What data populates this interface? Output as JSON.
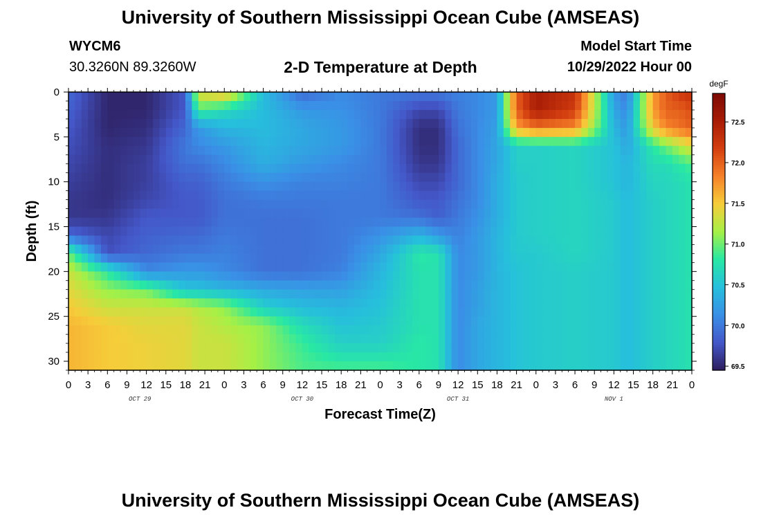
{
  "header": {
    "title": "University of Southern Mississippi Ocean Cube (AMSEAS)",
    "station_id": "WYCM6",
    "station_coords": "30.3260N  89.3260W",
    "plot_title": "2-D Temperature at Depth",
    "model_start_label": "Model Start Time",
    "model_start_value": "10/29/2022 Hour 00"
  },
  "footer": {
    "title": "University of Southern Mississippi Ocean Cube (AMSEAS)"
  },
  "chart_data": {
    "type": "heatmap",
    "title": "2-D Temperature at Depth",
    "xlabel": "Forecast Time(Z)",
    "ylabel": "Depth (ft)",
    "x_range_hours": [
      0,
      96
    ],
    "y_range_ft": [
      0,
      31
    ],
    "y_inverted": true,
    "x_tick_labels": [
      "0",
      "3",
      "6",
      "9",
      "12",
      "15",
      "18",
      "21",
      "0",
      "3",
      "6",
      "9",
      "12",
      "15",
      "18",
      "21",
      "0",
      "3",
      "6",
      "9",
      "12",
      "15",
      "18",
      "21",
      "0",
      "3",
      "6",
      "9",
      "12",
      "15",
      "18",
      "21",
      "0"
    ],
    "day_labels": [
      {
        "text": "OCT 29",
        "hour": 11
      },
      {
        "text": "OCT 30",
        "hour": 36
      },
      {
        "text": "OCT 31",
        "hour": 60
      },
      {
        "text": "NOV 1",
        "hour": 84
      }
    ],
    "y_ticks": [
      0,
      5,
      10,
      15,
      20,
      25,
      30
    ],
    "colorbar": {
      "unit": "degF",
      "min": 69.45,
      "max": 72.85,
      "ticks": [
        69.5,
        70.0,
        70.5,
        71.0,
        71.5,
        72.0,
        72.5
      ],
      "tick_labels": [
        "69.5",
        "70.0",
        "70.5",
        "71.0",
        "71.5",
        "72.0",
        "72.5"
      ],
      "colors": [
        "#2d1e5e",
        "#4457c9",
        "#3a8fe6",
        "#26bfdc",
        "#28e8a4",
        "#a6f046",
        "#f6cd3a",
        "#f6822a",
        "#d43f10",
        "#a81c06",
        "#7d0b05"
      ]
    },
    "grid": false,
    "approx_profiles_degF": {
      "depths_ft": [
        0,
        2,
        4,
        6,
        8,
        10,
        12,
        14,
        16,
        18,
        20,
        22,
        24,
        26,
        28,
        30,
        31
      ],
      "times_hr": [
        0,
        6,
        12,
        18,
        20,
        24,
        30,
        36,
        42,
        48,
        54,
        57,
        60,
        63,
        66,
        69,
        72,
        78,
        84,
        86,
        90,
        92,
        94,
        96
      ],
      "columns": [
        [
          69.9,
          69.85,
          69.8,
          69.75,
          69.7,
          69.65,
          69.6,
          69.6,
          69.9,
          71.0,
          71.3,
          71.4,
          71.5,
          71.6,
          71.6,
          71.6,
          71.6
        ],
        [
          69.5,
          69.5,
          69.5,
          69.55,
          69.55,
          69.55,
          69.55,
          69.6,
          69.7,
          69.75,
          70.8,
          71.1,
          71.3,
          71.5,
          71.5,
          71.5,
          71.5
        ],
        [
          69.5,
          69.5,
          69.55,
          69.6,
          69.65,
          69.65,
          69.7,
          69.8,
          69.85,
          69.9,
          70.1,
          71.0,
          71.3,
          71.4,
          71.45,
          71.45,
          71.45
        ],
        [
          69.8,
          69.8,
          69.9,
          70.0,
          69.95,
          69.85,
          69.8,
          69.8,
          69.9,
          70.0,
          70.2,
          70.5,
          71.3,
          71.4,
          71.4,
          71.4,
          71.4
        ],
        [
          71.4,
          70.9,
          70.2,
          70.1,
          69.95,
          69.85,
          69.8,
          69.8,
          69.9,
          70.0,
          70.2,
          70.5,
          71.2,
          71.3,
          71.3,
          71.3,
          71.3
        ],
        [
          71.6,
          70.7,
          70.4,
          70.2,
          70.1,
          70.0,
          69.95,
          69.95,
          70.0,
          70.05,
          70.1,
          70.4,
          71.1,
          71.2,
          71.3,
          71.3,
          71.3
        ],
        [
          70.45,
          70.45,
          70.45,
          70.4,
          70.35,
          70.15,
          70.0,
          69.95,
          69.95,
          69.95,
          69.95,
          70.3,
          70.6,
          71.1,
          71.1,
          71.1,
          71.1
        ],
        [
          69.9,
          70.2,
          70.3,
          70.3,
          70.2,
          70.05,
          70.0,
          69.95,
          69.95,
          69.95,
          69.95,
          70.25,
          70.45,
          70.7,
          70.85,
          70.9,
          70.9
        ],
        [
          70.1,
          70.15,
          70.2,
          70.2,
          70.1,
          70.05,
          70.0,
          70.0,
          70.0,
          70.0,
          70.05,
          70.25,
          70.4,
          70.5,
          70.6,
          70.8,
          70.9
        ],
        [
          70.0,
          70.0,
          70.0,
          70.0,
          70.0,
          70.0,
          70.0,
          70.0,
          70.15,
          70.3,
          70.4,
          70.45,
          70.5,
          70.55,
          70.6,
          70.8,
          70.9
        ],
        [
          70.0,
          69.7,
          69.55,
          69.55,
          69.6,
          69.7,
          69.8,
          69.95,
          70.4,
          70.8,
          70.75,
          70.75,
          70.75,
          70.75,
          70.8,
          70.8,
          70.8
        ],
        [
          70.0,
          69.7,
          69.55,
          69.55,
          69.6,
          69.7,
          69.8,
          69.85,
          70.2,
          70.75,
          70.75,
          70.75,
          70.75,
          70.75,
          70.75,
          70.75,
          70.75
        ],
        [
          70.05,
          70.0,
          69.95,
          69.9,
          69.9,
          69.9,
          69.95,
          70.0,
          70.05,
          70.1,
          70.1,
          70.1,
          70.1,
          70.1,
          70.1,
          70.1,
          70.1
        ],
        [
          70.1,
          70.1,
          70.1,
          70.1,
          70.1,
          70.1,
          70.1,
          70.15,
          70.2,
          70.2,
          70.2,
          70.25,
          70.25,
          70.3,
          70.3,
          70.3,
          70.3
        ],
        [
          70.2,
          70.2,
          70.25,
          70.3,
          70.3,
          70.35,
          70.35,
          70.35,
          70.4,
          70.4,
          70.4,
          70.4,
          70.4,
          70.4,
          70.4,
          70.4,
          70.4
        ],
        [
          72.0,
          72.0,
          71.7,
          70.6,
          70.6,
          70.55,
          70.55,
          70.55,
          70.55,
          70.55,
          70.5,
          70.5,
          70.5,
          70.5,
          70.5,
          70.5,
          70.5
        ],
        [
          72.5,
          72.5,
          71.9,
          70.6,
          70.6,
          70.6,
          70.6,
          70.6,
          70.6,
          70.55,
          70.55,
          70.55,
          70.55,
          70.55,
          70.55,
          70.55,
          70.55
        ],
        [
          72.3,
          72.2,
          71.8,
          70.65,
          70.65,
          70.65,
          70.65,
          70.65,
          70.65,
          70.65,
          70.6,
          70.6,
          70.6,
          70.6,
          70.6,
          70.6,
          70.6
        ],
        [
          70.2,
          70.3,
          70.4,
          70.5,
          70.5,
          70.5,
          70.55,
          70.55,
          70.55,
          70.55,
          70.55,
          70.55,
          70.55,
          70.55,
          70.55,
          70.55,
          70.55
        ],
        [
          70.0,
          70.1,
          70.2,
          70.3,
          70.4,
          70.4,
          70.45,
          70.45,
          70.45,
          70.45,
          70.45,
          70.45,
          70.45,
          70.45,
          70.45,
          70.45,
          70.45
        ],
        [
          71.7,
          71.7,
          71.5,
          70.8,
          70.7,
          70.65,
          70.6,
          70.6,
          70.6,
          70.6,
          70.6,
          70.6,
          70.6,
          70.6,
          70.6,
          70.6,
          70.6
        ],
        [
          72.0,
          72.0,
          71.8,
          71.0,
          70.7,
          70.65,
          70.65,
          70.65,
          70.65,
          70.65,
          70.65,
          70.65,
          70.65,
          70.65,
          70.65,
          70.65,
          70.65
        ],
        [
          72.2,
          72.0,
          71.9,
          71.2,
          70.8,
          70.7,
          70.7,
          70.7,
          70.7,
          70.7,
          70.7,
          70.7,
          70.7,
          70.7,
          70.7,
          70.7,
          70.7
        ],
        [
          72.3,
          72.1,
          72.0,
          71.4,
          70.9,
          70.75,
          70.75,
          70.75,
          70.75,
          70.75,
          70.75,
          70.75,
          70.75,
          70.75,
          70.75,
          70.75,
          70.75
        ]
      ]
    }
  }
}
